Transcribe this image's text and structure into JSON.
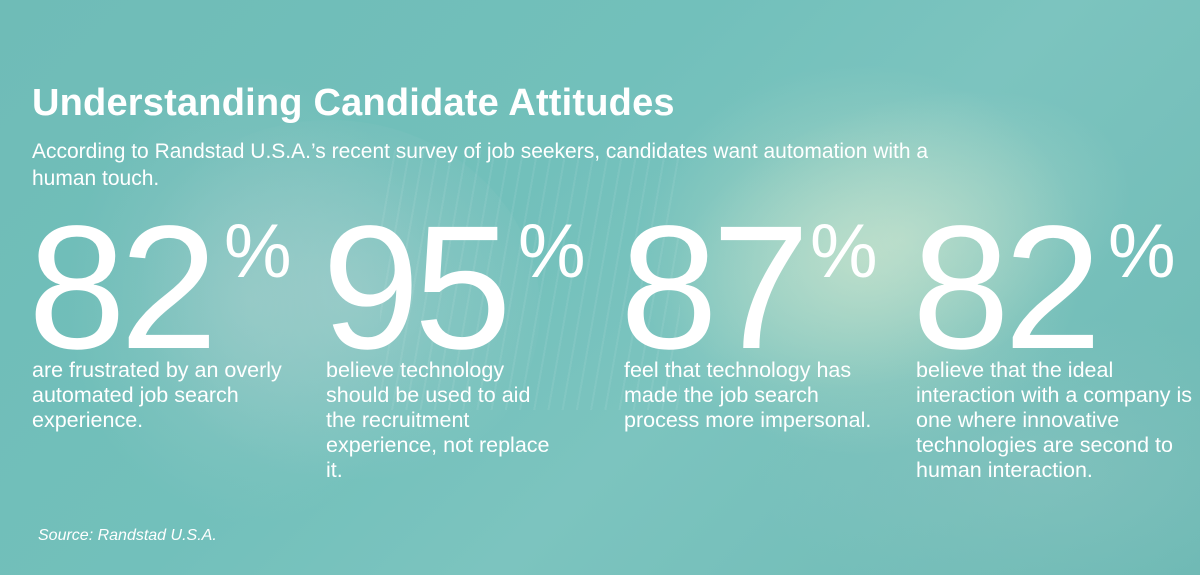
{
  "infographic": {
    "title": "Understanding Candidate Attitudes",
    "subtitle": "According to Randstad U.S.A.’s recent survey of job seekers, candidates want automation with a human touch.",
    "percent_symbol": "%",
    "stats": [
      {
        "value": "82",
        "text": "are frustrated by an overly automated job search experience."
      },
      {
        "value": "95",
        "text": "believe technology should be used to aid the recruitment experience, not replace it."
      },
      {
        "value": "87",
        "text": "feel that technology has made the job search process more impersonal."
      },
      {
        "value": "82",
        "text": "believe that the ideal interaction with a company is one where innovative technologies are second to human interaction."
      }
    ],
    "source": "Source: Randstad U.S.A."
  }
}
